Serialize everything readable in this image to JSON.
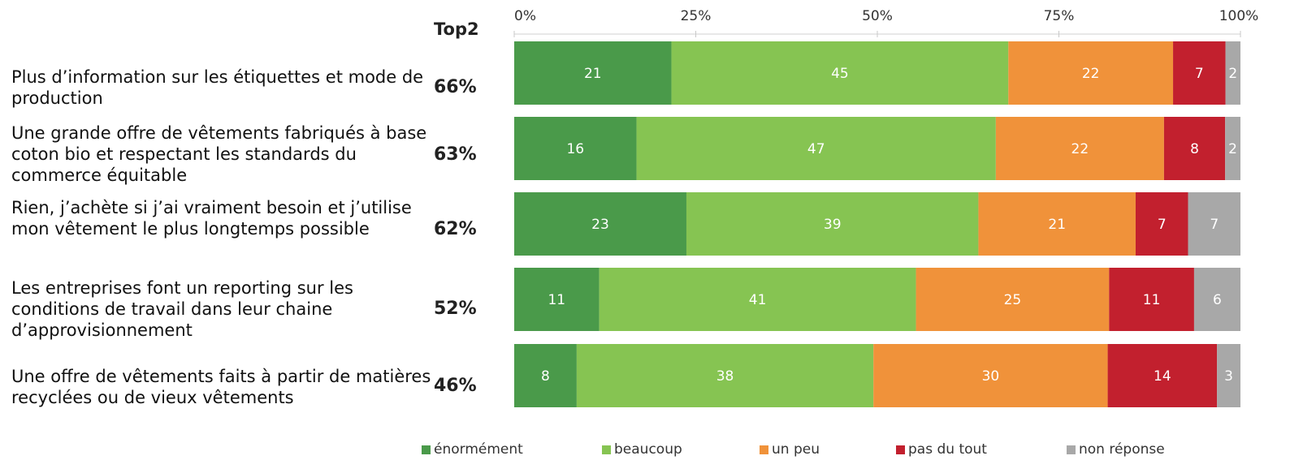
{
  "top2_header": "Top2",
  "categories": [
    "Plus d’information sur les étiquettes et mode de production",
    "Une grande offre de vêtements fabriqués à base coton bio et respectant les standards du commerce équitable",
    "Rien, j’achète si j’ai vraiment besoin et j’utilise mon vêtement le plus longtemps possible",
    "Les entreprises font un reporting sur les conditions de travail dans leur chaine d’approvisionnement",
    "Une offre de vêtements faits à partir de matières recyclées ou de vieux vêtements"
  ],
  "top2": [
    "66%",
    "63%",
    "62%",
    "52%",
    "46%"
  ],
  "chart_data": {
    "type": "bar",
    "orientation": "horizontal",
    "stacked": true,
    "percent_stacked": true,
    "categories": [
      "Plus d’information sur les étiquettes et mode de production",
      "Une grande offre de vêtements fabriqués à base coton bio et respectant les standards du commerce équitable",
      "Rien, j’achète si j’ai vraiment besoin et j’utilise mon vêtement le plus longtemps possible",
      "Les entreprises font un reporting sur les conditions de travail dans leur chaine d’approvisionnement",
      "Une offre de vêtements faits à partir de matières recyclées ou de vieux vêtements"
    ],
    "series": [
      {
        "name": "énormément",
        "color": "#4a9a4a",
        "values": [
          21,
          16,
          23,
          11,
          8
        ]
      },
      {
        "name": "beaucoup",
        "color": "#86c452",
        "values": [
          45,
          47,
          39,
          41,
          38
        ]
      },
      {
        "name": "un peu",
        "color": "#f0923a",
        "values": [
          22,
          22,
          21,
          25,
          30
        ]
      },
      {
        "name": "pas du tout",
        "color": "#c2202e",
        "values": [
          7,
          8,
          7,
          11,
          14
        ]
      },
      {
        "name": "non réponse",
        "color": "#a8a8a8",
        "values": [
          2,
          2,
          7,
          6,
          3
        ]
      }
    ],
    "x_ticks": [
      "0%",
      "25%",
      "50%",
      "75%",
      "100%"
    ],
    "xlim": [
      0,
      100
    ],
    "legend_position": "bottom",
    "grid": false
  }
}
